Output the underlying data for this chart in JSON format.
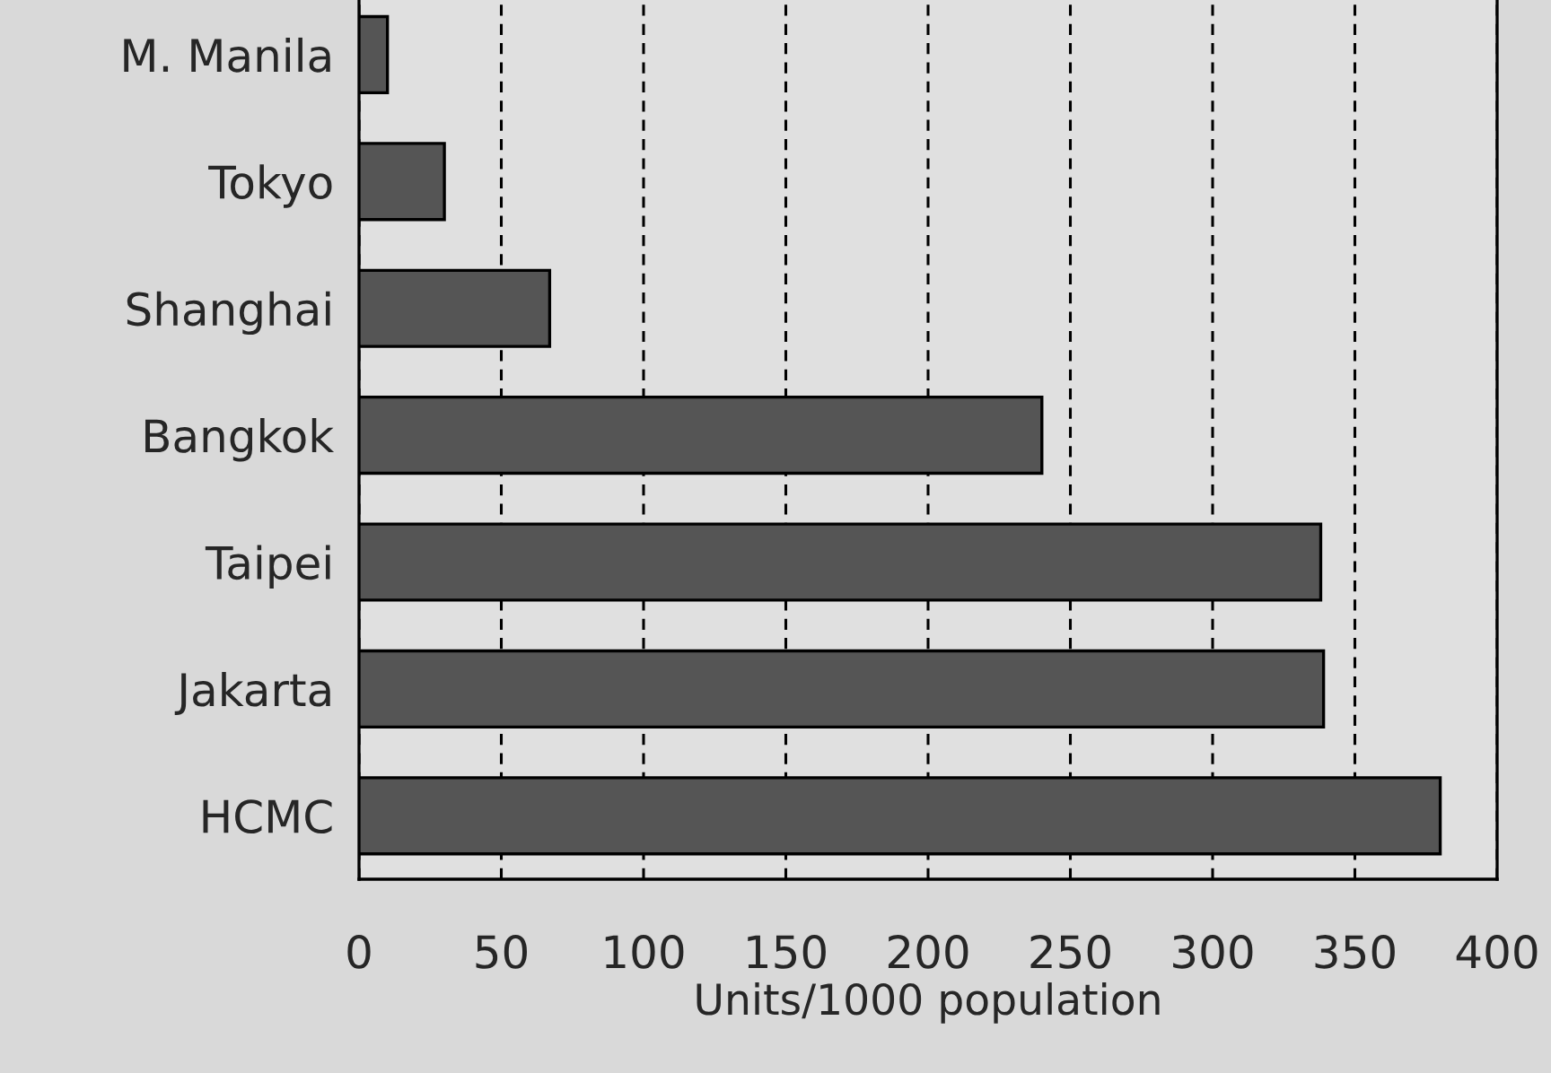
{
  "chart_data": {
    "type": "bar",
    "orientation": "horizontal",
    "xlabel": "Units/1000 population",
    "categories": [
      "M. Manila",
      "Tokyo",
      "Shanghai",
      "Bangkok",
      "Taipei",
      "Jakarta",
      "HCMC"
    ],
    "values": [
      10,
      30,
      67,
      240,
      338,
      339,
      380
    ],
    "color": "#555555",
    "xlim": [
      0,
      400
    ],
    "xticks": [
      0,
      50,
      100,
      150,
      200,
      250,
      300,
      350,
      400
    ],
    "grid": "x",
    "line_style": "dashed"
  }
}
